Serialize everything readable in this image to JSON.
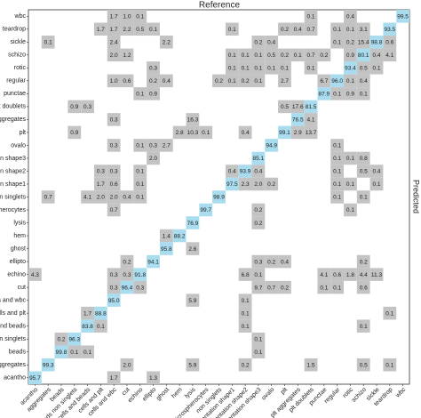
{
  "chart_data": {
    "type": "heatmap",
    "title": "Reference",
    "ylabel": "Predicted",
    "rows": [
      "wbc",
      "teardrop",
      "sickle",
      "schizo",
      "rotic",
      "regular",
      "punctae",
      "plt doublets",
      "plt aggregates",
      "plt",
      "ovalo",
      "orientation shape3",
      "orientation shape2",
      "orientation shape1",
      "non singlets",
      "microspherocytes",
      "lysis",
      "hem",
      "ghost",
      "ellipto",
      "echino",
      "cut",
      "cells and wbc",
      "cells and plt",
      "cells and beads",
      "beads non singlets",
      "beads",
      "aggregates",
      "acantho"
    ],
    "categories": [
      "acantho",
      "aggregates",
      "beads",
      "beads non singlets",
      "cells and beads",
      "cells and plt",
      "cells and wbc",
      "cut",
      "echino",
      "ellipto",
      "ghost",
      "hem",
      "lysis",
      "microspherocytes",
      "non singlets",
      "orientation shape1",
      "orientation shape2",
      "orientation shape3",
      "ovalo",
      "plt",
      "plt aggregates",
      "plt doublets",
      "punctae",
      "regular",
      "rotic",
      "schizo",
      "sickle",
      "teardrop",
      "wbc"
    ],
    "diagonal_color": "#a8dcee",
    "color": "#c3c3c3",
    "values": [
      [
        null,
        null,
        null,
        null,
        null,
        null,
        1.7,
        1.0,
        0.1,
        null,
        null,
        null,
        null,
        null,
        null,
        null,
        null,
        null,
        null,
        null,
        null,
        0.1,
        null,
        null,
        0.4,
        null,
        null,
        null,
        99.5
      ],
      [
        null,
        null,
        null,
        null,
        null,
        1.7,
        1.7,
        2.2,
        0.5,
        0.1,
        null,
        null,
        null,
        null,
        null,
        0.1,
        null,
        null,
        null,
        0.2,
        0.4,
        0.7,
        null,
        0.1,
        0.1,
        3.1,
        null,
        93.5,
        null
      ],
      [
        null,
        0.1,
        null,
        null,
        null,
        null,
        2.4,
        null,
        null,
        null,
        2.2,
        null,
        null,
        null,
        null,
        null,
        null,
        0.2,
        0.4,
        null,
        null,
        null,
        null,
        0.1,
        0.2,
        15.4,
        98.8,
        0.6,
        null
      ],
      [
        null,
        null,
        null,
        null,
        null,
        null,
        2.0,
        1.2,
        null,
        null,
        null,
        null,
        null,
        null,
        null,
        0.1,
        0.1,
        0.1,
        0.5,
        0.2,
        0.1,
        0.7,
        0.2,
        null,
        0.9,
        80.1,
        0.4,
        4.1,
        null
      ],
      [
        null,
        null,
        null,
        null,
        null,
        null,
        null,
        null,
        null,
        0.3,
        null,
        null,
        null,
        null,
        null,
        0.1,
        0.1,
        0.1,
        0.1,
        0.1,
        null,
        0.1,
        null,
        null,
        93.4,
        0.5,
        0.1,
        null,
        null
      ],
      [
        null,
        null,
        null,
        null,
        null,
        null,
        1.0,
        0.6,
        null,
        0.2,
        0.4,
        null,
        null,
        null,
        0.2,
        0.1,
        0.2,
        0.1,
        null,
        2.7,
        null,
        null,
        6.7,
        96.0,
        0.1,
        0.4,
        null,
        null,
        null
      ],
      [
        null,
        null,
        null,
        null,
        null,
        null,
        null,
        null,
        0.1,
        0.9,
        null,
        null,
        null,
        null,
        null,
        null,
        null,
        null,
        null,
        null,
        null,
        null,
        87.9,
        0.1,
        0.9,
        0.1,
        null,
        null,
        null
      ],
      [
        null,
        null,
        null,
        0.9,
        0.3,
        null,
        null,
        null,
        null,
        null,
        null,
        null,
        null,
        null,
        null,
        null,
        null,
        null,
        null,
        0.5,
        17.6,
        81.5,
        null,
        null,
        null,
        null,
        null,
        null,
        null
      ],
      [
        null,
        null,
        null,
        null,
        null,
        null,
        0.3,
        null,
        null,
        null,
        null,
        null,
        16.3,
        null,
        null,
        null,
        null,
        null,
        null,
        null,
        76.5,
        4.1,
        null,
        null,
        null,
        null,
        null,
        null,
        null
      ],
      [
        null,
        null,
        null,
        0.9,
        null,
        null,
        null,
        null,
        null,
        null,
        null,
        2.8,
        10.3,
        0.1,
        null,
        null,
        0.4,
        null,
        null,
        99.1,
        2.9,
        13.7,
        null,
        null,
        null,
        null,
        null,
        null,
        null
      ],
      [
        null,
        null,
        null,
        null,
        null,
        null,
        0.3,
        null,
        0.1,
        0.3,
        2.7,
        null,
        null,
        null,
        null,
        null,
        null,
        null,
        94.9,
        null,
        null,
        null,
        null,
        0.1,
        null,
        null,
        null,
        null,
        null
      ],
      [
        null,
        null,
        null,
        null,
        null,
        null,
        null,
        null,
        null,
        2.0,
        null,
        null,
        null,
        null,
        null,
        null,
        null,
        85.1,
        null,
        null,
        null,
        null,
        null,
        0.1,
        0.1,
        0.8,
        null,
        null,
        null
      ],
      [
        null,
        null,
        null,
        null,
        null,
        0.3,
        0.3,
        null,
        0.1,
        null,
        null,
        null,
        null,
        null,
        null,
        0.4,
        93.9,
        0.4,
        null,
        null,
        null,
        null,
        null,
        0.1,
        null,
        0.5,
        0.4,
        null,
        null
      ],
      [
        null,
        null,
        null,
        null,
        null,
        1.7,
        0.6,
        null,
        0.1,
        null,
        null,
        null,
        null,
        null,
        null,
        97.5,
        2.3,
        2.0,
        0.2,
        null,
        null,
        null,
        null,
        0.1,
        0.1,
        null,
        0.1,
        null,
        null
      ],
      [
        null,
        0.7,
        null,
        null,
        4.1,
        2.0,
        2.0,
        0.4,
        0.1,
        null,
        null,
        null,
        null,
        null,
        98.9,
        null,
        null,
        null,
        null,
        null,
        null,
        null,
        null,
        0.1,
        null,
        0.1,
        null,
        null,
        null
      ],
      [
        null,
        null,
        null,
        null,
        null,
        null,
        0.7,
        null,
        null,
        null,
        null,
        null,
        null,
        99.7,
        null,
        null,
        null,
        0.2,
        null,
        null,
        null,
        null,
        null,
        null,
        0.1,
        null,
        null,
        null,
        null
      ],
      [
        null,
        null,
        null,
        null,
        null,
        null,
        null,
        null,
        null,
        null,
        null,
        null,
        76.9,
        null,
        null,
        null,
        null,
        0.2,
        null,
        null,
        null,
        null,
        null,
        null,
        null,
        null,
        null,
        null,
        null
      ],
      [
        null,
        null,
        null,
        null,
        null,
        null,
        null,
        null,
        null,
        null,
        1.4,
        88.2,
        null,
        null,
        null,
        null,
        null,
        null,
        null,
        null,
        null,
        null,
        null,
        null,
        null,
        null,
        null,
        null,
        null
      ],
      [
        null,
        null,
        null,
        null,
        null,
        null,
        null,
        null,
        null,
        null,
        95.8,
        null,
        2.6,
        null,
        null,
        null,
        null,
        null,
        null,
        null,
        null,
        null,
        null,
        null,
        null,
        null,
        null,
        null,
        null
      ],
      [
        null,
        null,
        null,
        null,
        null,
        null,
        null,
        0.2,
        null,
        94.1,
        null,
        null,
        null,
        null,
        null,
        null,
        null,
        0.3,
        0.2,
        0.4,
        null,
        null,
        null,
        null,
        null,
        0.2,
        null,
        null,
        null
      ],
      [
        4.3,
        null,
        null,
        null,
        null,
        null,
        0.3,
        0.3,
        91.8,
        null,
        null,
        null,
        null,
        null,
        null,
        null,
        6.8,
        0.1,
        null,
        null,
        null,
        null,
        4.1,
        0.6,
        1.8,
        4.4,
        11.3,
        null,
        null
      ],
      [
        null,
        null,
        null,
        null,
        null,
        null,
        0.3,
        96.4,
        0.3,
        null,
        null,
        null,
        null,
        null,
        null,
        null,
        null,
        9.7,
        0.7,
        0.2,
        null,
        null,
        0.1,
        0.1,
        null,
        0.6,
        null,
        null,
        null
      ],
      [
        null,
        null,
        null,
        null,
        null,
        null,
        95.0,
        null,
        null,
        null,
        null,
        null,
        5.9,
        null,
        null,
        null,
        0.1,
        null,
        null,
        null,
        null,
        null,
        null,
        null,
        null,
        null,
        null,
        null,
        null
      ],
      [
        null,
        null,
        null,
        null,
        1.7,
        88.8,
        null,
        null,
        null,
        null,
        null,
        null,
        null,
        null,
        null,
        null,
        0.1,
        null,
        null,
        null,
        null,
        null,
        null,
        null,
        null,
        null,
        null,
        0.1,
        null
      ],
      [
        null,
        null,
        null,
        null,
        83.8,
        0.1,
        null,
        null,
        null,
        null,
        null,
        null,
        null,
        null,
        null,
        null,
        0.1,
        null,
        null,
        null,
        null,
        null,
        null,
        null,
        null,
        0.1,
        null,
        null,
        null
      ],
      [
        null,
        null,
        0.2,
        96.3,
        null,
        null,
        null,
        null,
        null,
        null,
        null,
        null,
        null,
        null,
        null,
        null,
        null,
        0.1,
        null,
        null,
        null,
        null,
        null,
        null,
        null,
        null,
        null,
        null,
        null
      ],
      [
        null,
        null,
        99.8,
        0.1,
        0.1,
        null,
        null,
        null,
        null,
        null,
        null,
        null,
        null,
        null,
        null,
        null,
        null,
        0.1,
        null,
        null,
        null,
        null,
        null,
        null,
        null,
        null,
        null,
        null,
        null
      ],
      [
        null,
        99.3,
        null,
        null,
        null,
        null,
        null,
        2.0,
        null,
        null,
        null,
        null,
        5.9,
        null,
        null,
        null,
        0.2,
        null,
        null,
        null,
        null,
        1.5,
        null,
        null,
        null,
        0.5,
        null,
        0.1,
        null
      ],
      [
        95.7,
        null,
        null,
        null,
        null,
        null,
        1.7,
        null,
        null,
        1.3,
        null,
        null,
        null,
        null,
        null,
        null,
        null,
        null,
        null,
        null,
        null,
        null,
        null,
        null,
        null,
        null,
        null,
        null,
        null
      ]
    ]
  }
}
